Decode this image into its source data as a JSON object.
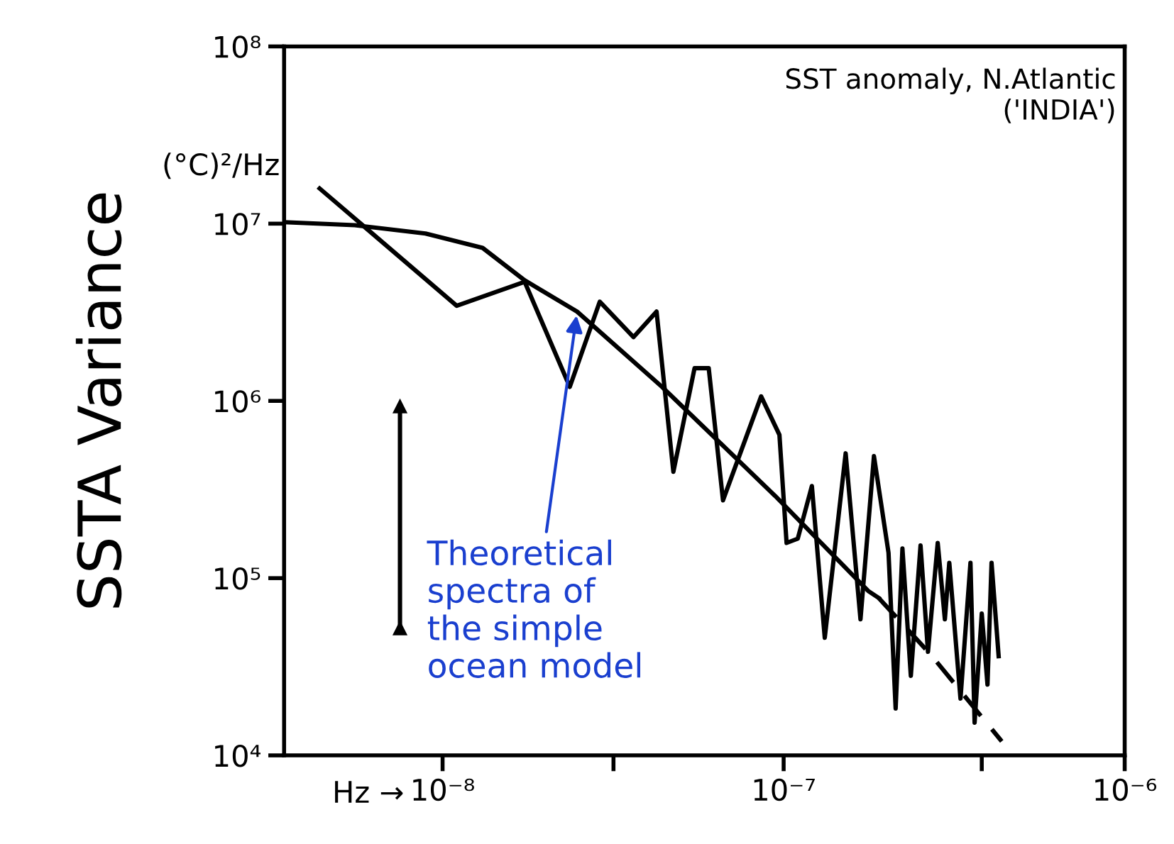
{
  "chart_data": {
    "type": "line",
    "ylabel": "SSTA Variance",
    "log": "xy",
    "xlim": [
      3.43e-09,
      1e-06
    ],
    "ylim": [
      10000.0,
      100000000.0
    ],
    "xlabel": "Hz →",
    "xticks": [
      {
        "value": 1e-08,
        "label": "10⁻⁸"
      },
      {
        "value": 3.17e-08,
        "label": null
      },
      {
        "value": 1e-07,
        "label": "10⁻⁷"
      },
      {
        "value": 3.81e-07,
        "label": null
      },
      {
        "value": 1e-06,
        "label": "10⁻⁶"
      }
    ],
    "yticks": [
      {
        "value": 10000.0,
        "label": "10⁴"
      },
      {
        "value": 100000.0,
        "label": "10⁵"
      },
      {
        "value": 1000000.0,
        "label": "10⁶"
      },
      {
        "value": 10000000.0,
        "label": "10⁷"
      },
      {
        "value": 100000000.0,
        "label": "10⁸"
      }
    ],
    "grid": false,
    "legend": false,
    "marker": "none",
    "series": [
      {
        "color": "#000000",
        "line_style": "solid",
        "x": [
          4.36e-09,
          1.1e-08,
          1.74e-08,
          2.36e-08,
          2.89e-08,
          3.63e-08,
          4.24e-08,
          4.75e-08,
          5.48e-08,
          6.03e-08,
          6.64e-08,
          8.59e-08,
          9.72e-08,
          1.02e-07,
          1.1e-07,
          1.21e-07,
          1.32e-07,
          1.52e-07,
          1.68e-07,
          1.84e-07,
          2.03e-07,
          2.13e-07,
          2.23e-07,
          2.36e-07,
          2.52e-07,
          2.65e-07,
          2.83e-07,
          2.97e-07,
          3.06e-07,
          3.3e-07,
          3.53e-07,
          3.63e-07,
          3.81e-07,
          3.96e-07,
          4.07e-07,
          4.27e-07
        ],
        "values": [
          15800000.0,
          3440000.0,
          4700000.0,
          1200000.0,
          3630000.0,
          2290000.0,
          3190000.0,
          398000.0,
          1530000.0,
          1530000.0,
          275000.0,
          1060000.0,
          643000.0,
          158000.0,
          167000.0,
          331000.0,
          46100.0,
          506000.0,
          58600.0,
          488000.0,
          139000.0,
          18400.0,
          147000.0,
          28100.0,
          153000.0,
          38400.0,
          158000.0,
          58600.0,
          122000.0,
          20900.0,
          122000.0,
          15300.0,
          63100.0,
          25100.0,
          122000.0,
          36300.0
        ]
      },
      {
        "color": "#000000",
        "line_style": "solid",
        "x": [
          3.43e-09,
          5.53e-09,
          8.91e-09,
          1.31e-08,
          1.74e-08,
          2.48e-08,
          4.4e-08,
          9.44e-08,
          1.77e-07,
          1.9e-07
        ],
        "values": [
          10200000.0,
          9800000.0,
          8800000.0,
          7300000.0,
          4790000.0,
          3190000.0,
          1200000.0,
          291000.0,
          84700.0,
          77300.0
        ]
      },
      {
        "color": "#000000",
        "line_style": "dashed",
        "x": [
          1.9e-07,
          2.7e-07,
          4.36e-07
        ],
        "values": [
          77300.0,
          37000.0,
          12000.0
        ]
      },
      {
        "color": "#000000",
        "line_style": "solid",
        "marker": "triangle",
        "x": [
          7.5e-09,
          7.5e-09
        ],
        "values": [
          930000.0,
          52000.0
        ]
      }
    ],
    "annotations": [
      "(°C)²/Hz",
      "SST anomaly, N.Atlantic\n('INDIA')",
      {
        "text": "Theoretical\nspectra of\nthe simple\nocean model",
        "x": 2.48e-08,
        "y": 3190000.0
      }
    ]
  }
}
